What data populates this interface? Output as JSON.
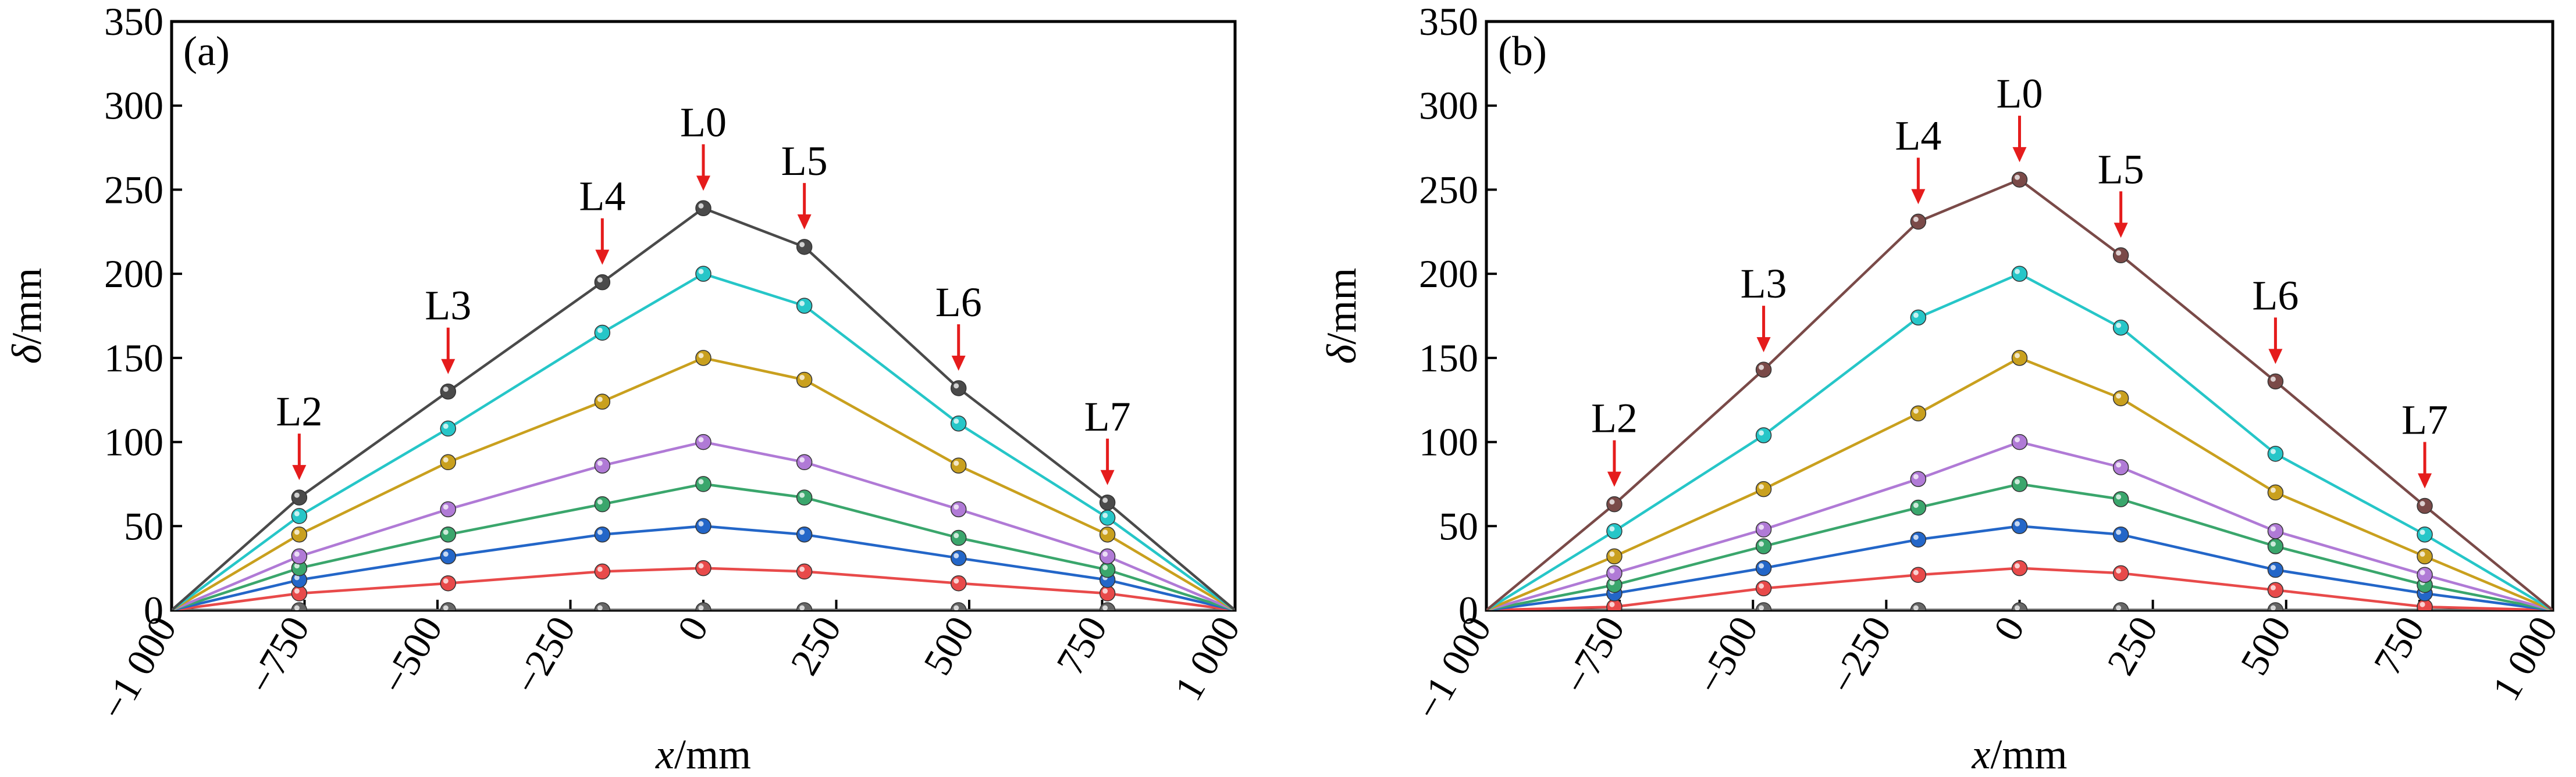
{
  "chart_data": [
    {
      "type": "line",
      "panel_label": "(a)",
      "xlabel": "x/mm",
      "ylabel": "δ/mm",
      "xlim": [
        -1000,
        1000
      ],
      "ylim": [
        0,
        350
      ],
      "xticks": [
        -1000,
        -750,
        -500,
        -250,
        0,
        250,
        500,
        750,
        1000
      ],
      "xtick_labels": [
        "−1 000",
        "−750",
        "−500",
        "−250",
        "0",
        "250",
        "500",
        "750",
        "1 000"
      ],
      "yticks": [
        0,
        50,
        100,
        150,
        200,
        250,
        300,
        350
      ],
      "ytick_labels": [
        "0",
        "50",
        "100",
        "150",
        "200",
        "250",
        "300",
        "350"
      ],
      "x": [
        -1000,
        -760,
        -480,
        -190,
        0,
        190,
        480,
        760,
        1000
      ],
      "series": [
        {
          "name": "s0",
          "color": "#666666",
          "values": [
            0,
            0,
            0,
            0,
            0,
            0,
            0,
            0,
            0
          ]
        },
        {
          "name": "s1",
          "color": "#e84a4a",
          "values": [
            0,
            10,
            16,
            23,
            25,
            23,
            16,
            10,
            0
          ]
        },
        {
          "name": "s2",
          "color": "#2366c8",
          "values": [
            0,
            18,
            32,
            45,
            50,
            45,
            31,
            18,
            0
          ]
        },
        {
          "name": "s3",
          "color": "#3aa66c",
          "values": [
            0,
            25,
            45,
            63,
            75,
            67,
            43,
            24,
            0
          ]
        },
        {
          "name": "s4",
          "color": "#b07ad6",
          "values": [
            0,
            32,
            60,
            86,
            100,
            88,
            60,
            32,
            0
          ]
        },
        {
          "name": "s5",
          "color": "#c9a01e",
          "values": [
            0,
            45,
            88,
            124,
            150,
            137,
            86,
            45,
            0
          ]
        },
        {
          "name": "s6",
          "color": "#26c6c8",
          "values": [
            0,
            56,
            108,
            165,
            200,
            181,
            111,
            55,
            0
          ]
        },
        {
          "name": "s7",
          "color": "#4a4a4a",
          "values": [
            0,
            67,
            130,
            195,
            239,
            216,
            132,
            64,
            0
          ]
        }
      ],
      "annotations": [
        {
          "text": "L2",
          "x": -760,
          "y": 67
        },
        {
          "text": "L3",
          "x": -480,
          "y": 130
        },
        {
          "text": "L4",
          "x": -190,
          "y": 195
        },
        {
          "text": "L0",
          "x": 0,
          "y": 239
        },
        {
          "text": "L5",
          "x": 190,
          "y": 216
        },
        {
          "text": "L6",
          "x": 480,
          "y": 132
        },
        {
          "text": "L7",
          "x": 760,
          "y": 64
        }
      ]
    },
    {
      "type": "line",
      "panel_label": "(b)",
      "xlabel": "x/mm",
      "ylabel": "δ/mm",
      "xlim": [
        -1000,
        1000
      ],
      "ylim": [
        0,
        350
      ],
      "xticks": [
        -1000,
        -750,
        -500,
        -250,
        0,
        250,
        500,
        750,
        1000
      ],
      "xtick_labels": [
        "−1 000",
        "−750",
        "−500",
        "−250",
        "0",
        "250",
        "500",
        "750",
        "1 000"
      ],
      "yticks": [
        0,
        50,
        100,
        150,
        200,
        250,
        300,
        350
      ],
      "ytick_labels": [
        "0",
        "50",
        "100",
        "150",
        "200",
        "250",
        "300",
        "350"
      ],
      "x": [
        -1000,
        -760,
        -480,
        -190,
        0,
        190,
        480,
        760,
        1000
      ],
      "series": [
        {
          "name": "s0",
          "color": "#666666",
          "values": [
            0,
            0,
            0,
            0,
            0,
            0,
            0,
            0,
            0
          ]
        },
        {
          "name": "s1",
          "color": "#e84a4a",
          "values": [
            0,
            2,
            13,
            21,
            25,
            22,
            12,
            2,
            0
          ]
        },
        {
          "name": "s2",
          "color": "#2366c8",
          "values": [
            0,
            10,
            25,
            42,
            50,
            45,
            24,
            10,
            0
          ]
        },
        {
          "name": "s3",
          "color": "#3aa66c",
          "values": [
            0,
            15,
            38,
            61,
            75,
            66,
            38,
            15,
            0
          ]
        },
        {
          "name": "s4",
          "color": "#b07ad6",
          "values": [
            0,
            22,
            48,
            78,
            100,
            85,
            47,
            21,
            0
          ]
        },
        {
          "name": "s5",
          "color": "#c9a01e",
          "values": [
            0,
            32,
            72,
            117,
            150,
            126,
            70,
            32,
            0
          ]
        },
        {
          "name": "s6",
          "color": "#26c6c8",
          "values": [
            0,
            47,
            104,
            174,
            200,
            168,
            93,
            45,
            0
          ]
        },
        {
          "name": "s7",
          "color": "#7a4a48",
          "values": [
            0,
            63,
            143,
            231,
            256,
            211,
            136,
            62,
            0
          ]
        }
      ],
      "annotations": [
        {
          "text": "L2",
          "x": -760,
          "y": 63
        },
        {
          "text": "L3",
          "x": -480,
          "y": 143
        },
        {
          "text": "L4",
          "x": -190,
          "y": 231
        },
        {
          "text": "L0",
          "x": 0,
          "y": 256
        },
        {
          "text": "L5",
          "x": 190,
          "y": 211
        },
        {
          "text": "L6",
          "x": 480,
          "y": 136
        },
        {
          "text": "L7",
          "x": 760,
          "y": 62
        }
      ]
    }
  ],
  "colors": {
    "arrow": "#e51c1c",
    "axis": "#000000"
  }
}
